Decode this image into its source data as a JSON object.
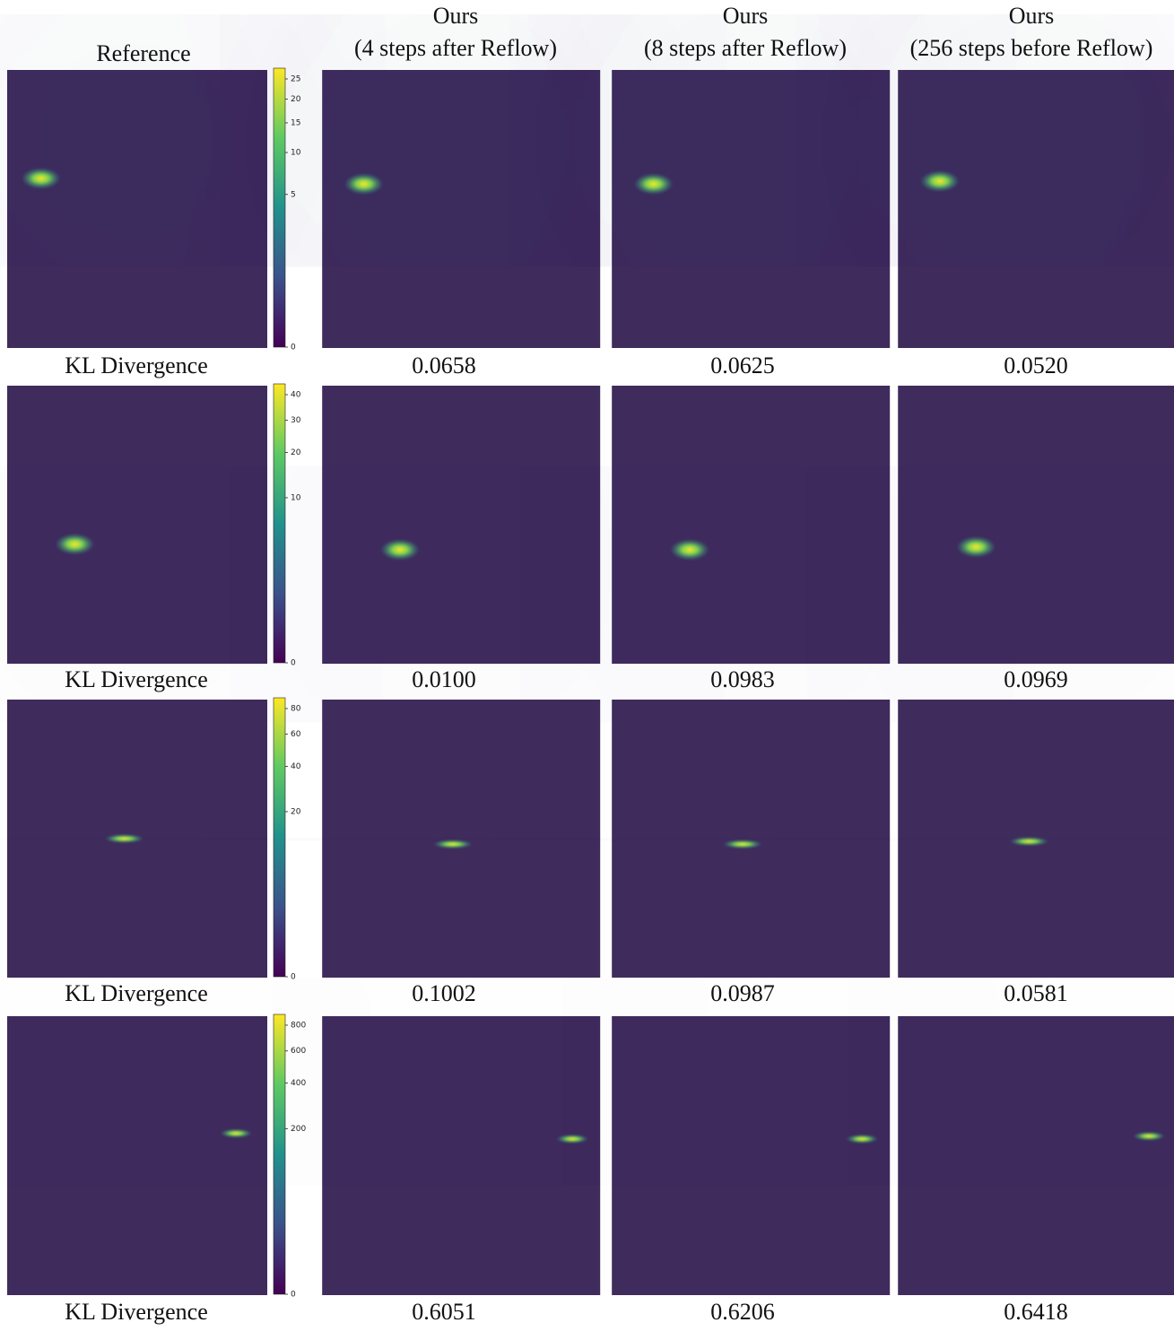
{
  "header": {
    "reference": "Reference",
    "columns": [
      {
        "title": "Ours",
        "subtitle": "(4 steps after Reflow)"
      },
      {
        "title": "Ours",
        "subtitle": "(8 steps after Reflow)"
      },
      {
        "title": "Ours",
        "subtitle": "(256 steps before Reflow)"
      }
    ]
  },
  "rows": [
    {
      "metric_label": "KL Divergence",
      "colorbar_ticks": [
        0,
        5,
        10,
        15,
        20,
        25
      ],
      "kl": [
        "0.0658",
        "0.0625",
        "0.0520"
      ]
    },
    {
      "metric_label": "KL Divergence",
      "colorbar_ticks": [
        0,
        10,
        20,
        30,
        40
      ],
      "kl": [
        "0.0100",
        "0.0983",
        "0.0969"
      ]
    },
    {
      "metric_label": "KL Divergence",
      "colorbar_ticks": [
        0,
        20,
        40,
        60,
        80
      ],
      "kl": [
        "0.1002",
        "0.0987",
        "0.0581"
      ]
    },
    {
      "metric_label": "KL Divergence",
      "colorbar_ticks": [
        0,
        200,
        400,
        600,
        800
      ],
      "kl": [
        "0.6051",
        "0.6206",
        "0.6418"
      ]
    }
  ]
}
